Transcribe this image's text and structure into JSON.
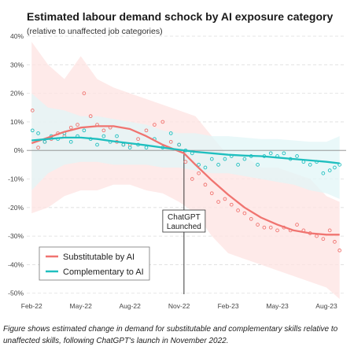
{
  "chart_data": {
    "type": "scatter",
    "title": "Estimated labour demand schock by AI exposure category",
    "subtitle": "(relative to unaffected job categories)",
    "xlabel": "",
    "ylabel": "",
    "ylim": [
      -52,
      40
    ],
    "y_ticks": [
      "40%",
      "30%",
      "20%",
      "10%",
      "0%",
      "-10%",
      "-20%",
      "-30%",
      "-40%",
      "-50%"
    ],
    "y_tick_values": [
      40,
      30,
      20,
      10,
      0,
      -10,
      -20,
      -30,
      -40,
      -50
    ],
    "x_ticks": [
      "Feb-22",
      "May-22",
      "Aug-22",
      "Nov-22",
      "Feb-23",
      "May-23",
      "Aug-23"
    ],
    "x_tick_months": [
      0,
      3,
      6,
      9,
      12,
      15,
      18
    ],
    "x_range_months": [
      -0.3,
      19.2
    ],
    "grid": true,
    "legend_position": "bottom-left",
    "annotation": {
      "label_line1": "ChatGPT",
      "label_line2": "Launched",
      "x_month": 9.3
    },
    "caption": "Figure shows estimated change in demand for substitutable and complementary skills relative to unaffected skills, following ChatGPT's launch in November 2022.",
    "series": [
      {
        "name": "Substitutable by AI",
        "color": "#f07470",
        "band_color": "#fde3e2",
        "trend": [
          [
            0,
            2.5
          ],
          [
            1,
            4.5
          ],
          [
            2,
            6.5
          ],
          [
            3,
            8
          ],
          [
            4,
            8.5
          ],
          [
            5,
            8.5
          ],
          [
            6,
            7.5
          ],
          [
            7,
            5
          ],
          [
            8,
            2
          ],
          [
            9.3,
            -1
          ],
          [
            10,
            -5
          ],
          [
            11,
            -10.5
          ],
          [
            12,
            -15.5
          ],
          [
            13,
            -20
          ],
          [
            14,
            -23.5
          ],
          [
            15,
            -26
          ],
          [
            16,
            -28
          ],
          [
            17,
            -29
          ],
          [
            18,
            -29.5
          ],
          [
            18.8,
            -29.5
          ]
        ],
        "band_upper": [
          [
            0,
            38
          ],
          [
            1,
            30
          ],
          [
            2,
            25
          ],
          [
            3,
            33
          ],
          [
            4,
            25
          ],
          [
            5,
            22
          ],
          [
            6,
            20
          ],
          [
            7,
            18
          ],
          [
            8,
            16
          ],
          [
            9,
            14
          ],
          [
            10,
            12
          ],
          [
            11,
            5
          ],
          [
            12,
            -2
          ],
          [
            13,
            -2
          ],
          [
            14,
            -6
          ],
          [
            15,
            -6
          ],
          [
            16,
            -8
          ],
          [
            17,
            -10
          ],
          [
            18,
            -16
          ],
          [
            18.8,
            -18
          ]
        ],
        "band_lower": [
          [
            0,
            -22
          ],
          [
            1,
            -20
          ],
          [
            2,
            -16
          ],
          [
            3,
            -14
          ],
          [
            4,
            -14
          ],
          [
            5,
            -12
          ],
          [
            6,
            -12
          ],
          [
            7,
            -14
          ],
          [
            8,
            -15
          ],
          [
            9,
            -18
          ],
          [
            10,
            -22
          ],
          [
            11,
            -30
          ],
          [
            12,
            -36
          ],
          [
            13,
            -38
          ],
          [
            14,
            -40
          ],
          [
            15,
            -42
          ],
          [
            16,
            -44
          ],
          [
            17,
            -46
          ],
          [
            18,
            -48
          ],
          [
            18.8,
            -52
          ]
        ],
        "points": [
          [
            0.05,
            14
          ],
          [
            0.4,
            1
          ],
          [
            0.8,
            3
          ],
          [
            1.2,
            4
          ],
          [
            1.6,
            6
          ],
          [
            2,
            5
          ],
          [
            2.4,
            8
          ],
          [
            2.8,
            9
          ],
          [
            3.2,
            20
          ],
          [
            3.6,
            12
          ],
          [
            4,
            9
          ],
          [
            4.4,
            7
          ],
          [
            4.8,
            8
          ],
          [
            5.2,
            3
          ],
          [
            5.6,
            2
          ],
          [
            6,
            2
          ],
          [
            6.5,
            4
          ],
          [
            7,
            7
          ],
          [
            7.5,
            9
          ],
          [
            8,
            10
          ],
          [
            8.5,
            3
          ],
          [
            9,
            2
          ],
          [
            9.4,
            -4
          ],
          [
            9.8,
            -10
          ],
          [
            10.2,
            -8
          ],
          [
            10.6,
            -12
          ],
          [
            11,
            -15
          ],
          [
            11.4,
            -18
          ],
          [
            11.8,
            -17
          ],
          [
            12.2,
            -19
          ],
          [
            12.6,
            -21
          ],
          [
            13,
            -22
          ],
          [
            13.4,
            -24
          ],
          [
            13.8,
            -26
          ],
          [
            14.2,
            -27
          ],
          [
            14.6,
            -27
          ],
          [
            15,
            -28
          ],
          [
            15.4,
            -27
          ],
          [
            15.8,
            -28
          ],
          [
            16.2,
            -26
          ],
          [
            16.6,
            -28
          ],
          [
            17,
            -29
          ],
          [
            17.4,
            -30
          ],
          [
            17.8,
            -31
          ],
          [
            18.2,
            -28
          ],
          [
            18.5,
            -32
          ],
          [
            18.8,
            -35
          ]
        ]
      },
      {
        "name": "Complementary to AI",
        "color": "#1fbfbf",
        "band_color": "#e1f6f7",
        "trend": [
          [
            0,
            3.5
          ],
          [
            1,
            4
          ],
          [
            2,
            4.5
          ],
          [
            3,
            4.5
          ],
          [
            4,
            4
          ],
          [
            5,
            3.2
          ],
          [
            6,
            2.5
          ],
          [
            7,
            1.8
          ],
          [
            8,
            1
          ],
          [
            9.3,
            0
          ],
          [
            10,
            -0.5
          ],
          [
            11,
            -1
          ],
          [
            12,
            -1.5
          ],
          [
            13,
            -1.8
          ],
          [
            14,
            -2
          ],
          [
            15,
            -2.5
          ],
          [
            16,
            -3
          ],
          [
            17,
            -3.5
          ],
          [
            18,
            -4
          ],
          [
            18.8,
            -4.5
          ]
        ],
        "band_upper": [
          [
            0,
            20
          ],
          [
            1,
            15
          ],
          [
            2,
            14
          ],
          [
            3,
            12
          ],
          [
            4,
            12
          ],
          [
            5,
            11
          ],
          [
            6,
            10
          ],
          [
            7,
            9
          ],
          [
            8,
            7
          ],
          [
            9,
            6
          ],
          [
            10,
            6
          ],
          [
            11,
            5
          ],
          [
            12,
            5
          ],
          [
            13,
            4.5
          ],
          [
            14,
            4
          ],
          [
            15,
            4
          ],
          [
            16,
            3.5
          ],
          [
            17,
            3
          ],
          [
            18,
            3
          ],
          [
            18.8,
            5
          ]
        ],
        "band_lower": [
          [
            0,
            -14
          ],
          [
            1,
            -8
          ],
          [
            2,
            -5
          ],
          [
            3,
            -4
          ],
          [
            4,
            -4
          ],
          [
            5,
            -5
          ],
          [
            6,
            -5
          ],
          [
            7,
            -5
          ],
          [
            8,
            -6
          ],
          [
            9,
            -6
          ],
          [
            10,
            -7
          ],
          [
            11,
            -8
          ],
          [
            12,
            -8
          ],
          [
            13,
            -9
          ],
          [
            14,
            -10
          ],
          [
            15,
            -11
          ],
          [
            16,
            -12
          ],
          [
            17,
            -14
          ],
          [
            18,
            -15
          ],
          [
            18.8,
            -17
          ]
        ],
        "points": [
          [
            0.05,
            7
          ],
          [
            0.4,
            6
          ],
          [
            0.8,
            3
          ],
          [
            1.2,
            5
          ],
          [
            1.6,
            4
          ],
          [
            2,
            6
          ],
          [
            2.4,
            3
          ],
          [
            2.8,
            5
          ],
          [
            3.2,
            7
          ],
          [
            3.6,
            4
          ],
          [
            4,
            2
          ],
          [
            4.4,
            5
          ],
          [
            4.8,
            3
          ],
          [
            5.2,
            5
          ],
          [
            5.6,
            2
          ],
          [
            6,
            1
          ],
          [
            6.5,
            2
          ],
          [
            7,
            1
          ],
          [
            7.5,
            4
          ],
          [
            8,
            1
          ],
          [
            8.5,
            6
          ],
          [
            9,
            2
          ],
          [
            9.4,
            0
          ],
          [
            9.8,
            -1
          ],
          [
            10.2,
            -5
          ],
          [
            10.6,
            -6
          ],
          [
            11,
            -3
          ],
          [
            11.4,
            -5
          ],
          [
            11.8,
            -3
          ],
          [
            12.2,
            -2
          ],
          [
            12.6,
            -5
          ],
          [
            13,
            -3
          ],
          [
            13.4,
            -2
          ],
          [
            13.8,
            -5
          ],
          [
            14.2,
            -2
          ],
          [
            14.6,
            -1
          ],
          [
            15,
            -2
          ],
          [
            15.4,
            -1
          ],
          [
            15.8,
            -3
          ],
          [
            16.2,
            -2
          ],
          [
            16.6,
            -4
          ],
          [
            17,
            -5
          ],
          [
            17.4,
            -4
          ],
          [
            17.8,
            -8
          ],
          [
            18.2,
            -7
          ],
          [
            18.5,
            -6
          ],
          [
            18.8,
            -5
          ]
        ]
      }
    ]
  }
}
